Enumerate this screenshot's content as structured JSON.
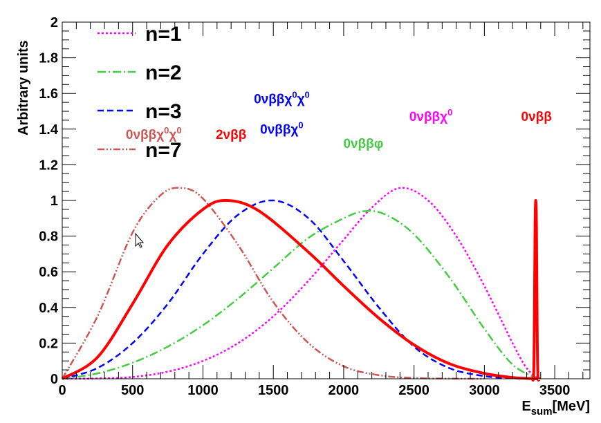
{
  "chart_data": {
    "type": "line",
    "title": "",
    "xlabel": "E",
    "xlabel_sub": "sum",
    "xlabel_unit": "[MeV]",
    "ylabel": "Arbitrary units",
    "xlim": [
      0,
      3750
    ],
    "ylim": [
      0,
      2
    ],
    "x_ticks": [
      0,
      500,
      1000,
      1500,
      2000,
      2500,
      3000,
      3500
    ],
    "y_ticks": [
      0,
      0.2,
      0.4,
      0.6,
      0.8,
      1,
      1.2,
      1.4,
      1.6,
      1.8,
      2
    ],
    "x_tick_labels": [
      "0",
      "500",
      "1000",
      "1500",
      "2000",
      "2500",
      "3000",
      "3500"
    ],
    "y_tick_labels": [
      "0",
      "0.2",
      "0.4",
      "0.6",
      "0.8",
      "1",
      "1.2",
      "1.4",
      "1.6",
      "1.8",
      "2"
    ],
    "grid": false,
    "legend_position": "top-left",
    "series": [
      {
        "name": "n=1",
        "color": "#ff00ff",
        "dash": "dotted",
        "x": [
          0,
          250,
          500,
          750,
          1000,
          1250,
          1500,
          1750,
          2000,
          2200,
          2400,
          2600,
          2800,
          3000,
          3200,
          3300,
          3380
        ],
        "y": [
          0,
          0.002,
          0.01,
          0.04,
          0.1,
          0.2,
          0.35,
          0.55,
          0.78,
          0.96,
          1.07,
          1.0,
          0.8,
          0.52,
          0.2,
          0.06,
          0
        ]
      },
      {
        "name": "n=2",
        "color": "#44cc44",
        "dash": "dash-dot",
        "x": [
          0,
          250,
          500,
          750,
          1000,
          1250,
          1500,
          1750,
          2000,
          2150,
          2300,
          2500,
          2750,
          3000,
          3200,
          3380
        ],
        "y": [
          0,
          0.03,
          0.09,
          0.18,
          0.3,
          0.45,
          0.62,
          0.79,
          0.9,
          0.94,
          0.92,
          0.81,
          0.57,
          0.28,
          0.08,
          0
        ]
      },
      {
        "name": "n=3",
        "color": "#0000ff",
        "dash": "dashed",
        "x": [
          0,
          250,
          500,
          750,
          1000,
          1250,
          1500,
          1750,
          2000,
          2250,
          2500,
          2750,
          3000,
          3200,
          3380
        ],
        "y": [
          0,
          0.06,
          0.2,
          0.42,
          0.7,
          0.92,
          1.0,
          0.9,
          0.66,
          0.4,
          0.18,
          0.06,
          0.015,
          0.003,
          0
        ]
      },
      {
        "name": "n=7",
        "color": "#cc5555",
        "dash": "dash-dot-dot",
        "x": [
          0,
          250,
          500,
          700,
          850,
          1000,
          1250,
          1500,
          1750,
          2000,
          2250,
          2500,
          2750,
          3000
        ],
        "y": [
          0,
          0.35,
          0.82,
          1.03,
          1.07,
          1.01,
          0.75,
          0.43,
          0.2,
          0.07,
          0.02,
          0.004,
          0.001,
          0
        ]
      },
      {
        "name": "2νββ",
        "color": "#ff0000",
        "dash": "solid",
        "x": [
          0,
          250,
          500,
          750,
          1000,
          1170,
          1400,
          1750,
          2000,
          2250,
          2500,
          2750,
          3000,
          3200,
          3380
        ],
        "y": [
          0,
          0.12,
          0.42,
          0.75,
          0.95,
          1.0,
          0.94,
          0.71,
          0.52,
          0.34,
          0.19,
          0.085,
          0.03,
          0.007,
          0
        ]
      },
      {
        "name": "0νββ",
        "color": "#ff0000",
        "dash": "solid",
        "x": [
          3340,
          3350,
          3355,
          3360,
          3365,
          3370,
          3375,
          3380,
          3390
        ],
        "y": [
          0,
          0.02,
          0.3,
          0.85,
          1.0,
          0.85,
          0.3,
          0.02,
          0
        ]
      }
    ],
    "legend": [
      {
        "label": "n=1",
        "color": "#ff00ff",
        "dash": "dotted"
      },
      {
        "label": "n=2",
        "color": "#44cc44",
        "dash": "dash-dot"
      },
      {
        "label": "n=3",
        "color": "#0000ff",
        "dash": "dashed"
      },
      {
        "label": "n=7",
        "color": "#cc5555",
        "dash": "dash-dot-dot"
      }
    ],
    "annotations": [
      {
        "x": 650,
        "y": 1.345,
        "parts": [
          [
            "0νββχ",
            ""
          ],
          [
            "0",
            "sup"
          ],
          [
            "χ",
            ""
          ],
          [
            "0",
            "sup"
          ]
        ],
        "color": "#cc5555"
      },
      {
        "x": 1200,
        "y": 1.345,
        "parts": [
          [
            "2νββ",
            ""
          ]
        ],
        "color": "#ff0000"
      },
      {
        "x": 1560,
        "y": 1.545,
        "parts": [
          [
            "0νββχ",
            ""
          ],
          [
            "0",
            "sup"
          ],
          [
            "χ",
            ""
          ],
          [
            "0",
            "sup"
          ]
        ],
        "color": "#0000ff"
      },
      {
        "x": 1560,
        "y": 1.375,
        "parts": [
          [
            "0νββχ",
            ""
          ],
          [
            "0",
            "sup"
          ]
        ],
        "color": "#0000ff"
      },
      {
        "x": 2140,
        "y": 1.295,
        "parts": [
          [
            "0νββφ",
            ""
          ]
        ],
        "color": "#44cc44"
      },
      {
        "x": 2620,
        "y": 1.445,
        "parts": [
          [
            "0νββχ",
            ""
          ],
          [
            "0",
            "sup"
          ]
        ],
        "color": "#ff00ff"
      },
      {
        "x": 3370,
        "y": 1.445,
        "parts": [
          [
            "0νββ",
            ""
          ]
        ],
        "color": "#ff0000"
      }
    ]
  }
}
